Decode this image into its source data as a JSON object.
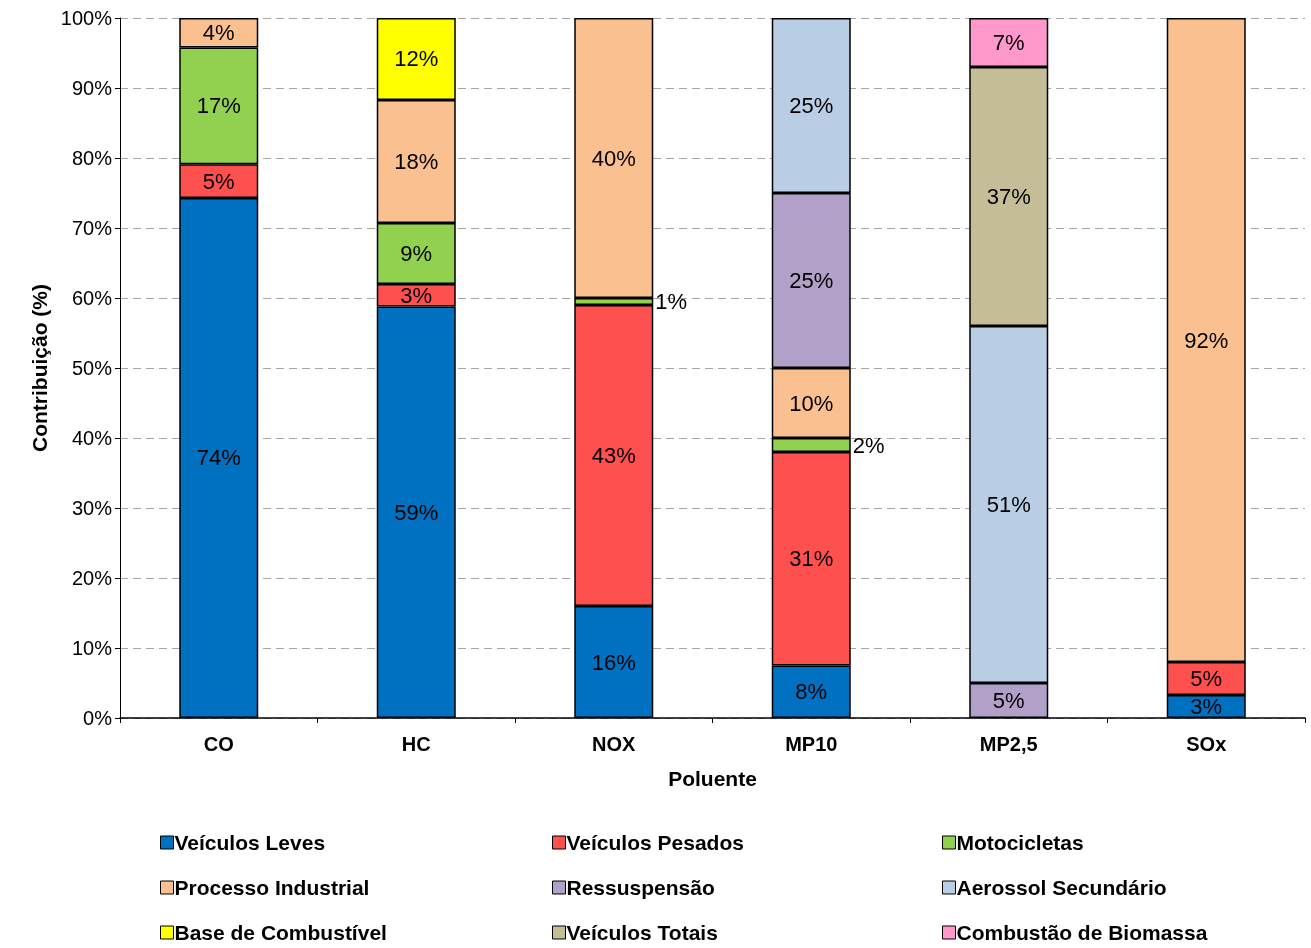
{
  "chart_data": {
    "type": "bar",
    "stacked": true,
    "xlabel": "Poluente",
    "ylabel": "Contribuição (%)",
    "categories": [
      "CO",
      "HC",
      "NOX",
      "MP10",
      "MP2,5",
      "SOx"
    ],
    "series": [
      {
        "name": "Veículos Leves",
        "color": "#0070c0",
        "values": [
          74.3,
          58.8,
          16,
          7.5,
          null,
          3.3
        ],
        "value_labels": [
          "74%",
          "59%",
          "16%",
          "8%",
          null,
          "3%"
        ]
      },
      {
        "name": "Veículos Pesados",
        "color": "#ff5050",
        "values": [
          4.8,
          3.2,
          43,
          30.5,
          null,
          4.7
        ],
        "value_labels": [
          "5%",
          "3%",
          "43%",
          "31%",
          null,
          "5%"
        ]
      },
      {
        "name": "Motocicletas",
        "color": "#92d050",
        "values": [
          16.7,
          8.7,
          1,
          2,
          null,
          null
        ],
        "value_labels": [
          "17%",
          "9%",
          "1%",
          "2%",
          null,
          null
        ]
      },
      {
        "name": "Processo Industrial",
        "color": "#fac090",
        "values": [
          4.2,
          17.6,
          40,
          10,
          null,
          92
        ],
        "value_labels": [
          "4%",
          "18%",
          "40%",
          "10%",
          null,
          "92%"
        ]
      },
      {
        "name": "Ressuspensão",
        "color": "#b1a0c7",
        "values": [
          null,
          null,
          null,
          25,
          5,
          null
        ],
        "value_labels": [
          null,
          null,
          null,
          "25%",
          "5%",
          null
        ]
      },
      {
        "name": "Aerossol Secundário",
        "color": "#b9cde5",
        "values": [
          null,
          null,
          null,
          25,
          51,
          null
        ],
        "value_labels": [
          null,
          null,
          null,
          "25%",
          "51%",
          null
        ]
      },
      {
        "name": "Base de Combustível",
        "color": "#ffff00",
        "values": [
          null,
          11.7,
          null,
          null,
          null,
          null
        ],
        "value_labels": [
          null,
          "12%",
          null,
          null,
          null,
          null
        ]
      },
      {
        "name": "Veículos Totais",
        "color": "#c4bd97",
        "values": [
          null,
          null,
          null,
          null,
          37,
          null
        ],
        "value_labels": [
          null,
          null,
          null,
          null,
          "37%",
          null
        ]
      },
      {
        "name": "Combustão de Biomassa",
        "color": "#ff99cc",
        "values": [
          null,
          null,
          null,
          null,
          7,
          null
        ],
        "value_labels": [
          null,
          null,
          null,
          null,
          "7%",
          null
        ]
      }
    ],
    "ylim": [
      0,
      100
    ],
    "yticks": [
      {
        "value": 0,
        "label": "0%"
      },
      {
        "value": 10,
        "label": "10%"
      },
      {
        "value": 20,
        "label": "20%"
      },
      {
        "value": 30,
        "label": "30%"
      },
      {
        "value": 40,
        "label": "40%"
      },
      {
        "value": 50,
        "label": "50%"
      },
      {
        "value": 60,
        "label": "60%"
      },
      {
        "value": 70,
        "label": "70%"
      },
      {
        "value": 80,
        "label": "80%"
      },
      {
        "value": 90,
        "label": "90%"
      },
      {
        "value": 100,
        "label": "100%"
      }
    ],
    "grid": "y",
    "legend": "bottom"
  }
}
